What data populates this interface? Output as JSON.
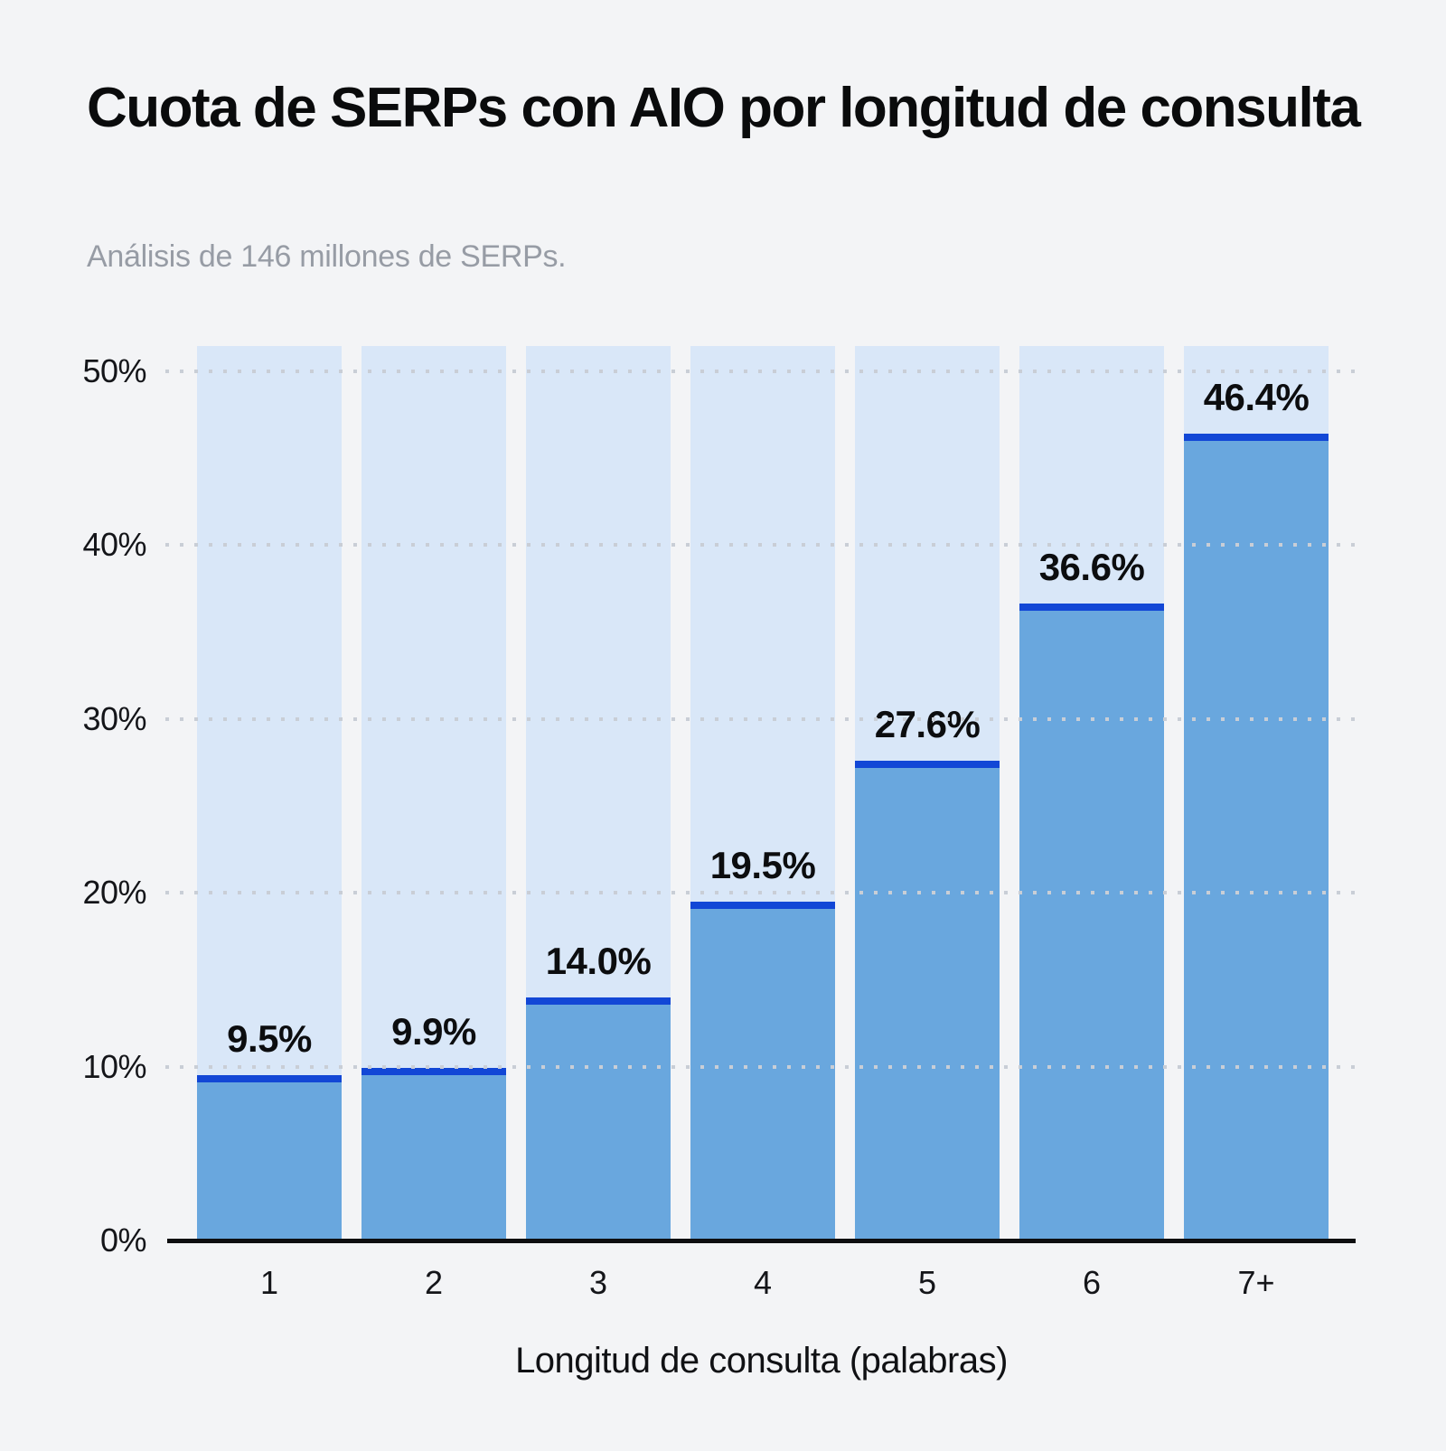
{
  "chart_data": {
    "type": "bar",
    "title": "Cuota de SERPs con AIO por longitud de consulta",
    "subtitle": "Análisis de 146 millones de SERPs.",
    "xlabel": "Longitud de consulta (palabras)",
    "ylabel": "",
    "categories": [
      "1",
      "2",
      "3",
      "4",
      "5",
      "6",
      "7+"
    ],
    "values": [
      9.5,
      9.9,
      14.0,
      19.5,
      27.6,
      36.6,
      46.4
    ],
    "value_labels": [
      "9.5%",
      "9.9%",
      "14.0%",
      "19.5%",
      "27.6%",
      "36.6%",
      "46.4%"
    ],
    "yticks": [
      {
        "value": 0,
        "label": "0%"
      },
      {
        "value": 10,
        "label": "10%"
      },
      {
        "value": 20,
        "label": "20%"
      },
      {
        "value": 30,
        "label": "30%"
      },
      {
        "value": 40,
        "label": "40%"
      },
      {
        "value": 50,
        "label": "50%"
      }
    ],
    "ylim": [
      0,
      51.4
    ],
    "grid": "horizontal-dotted",
    "legend": "none",
    "colors": {
      "background": "#f3f4f6",
      "column_track": "#d9e7f8",
      "bar_fill": "#69a7de",
      "bar_cap": "#1247d6",
      "gridline": "#c9ced6",
      "axis": "#0d0e10",
      "title": "#0a0b0c",
      "subtitle": "#979ca5",
      "tick_label": "#141519"
    }
  }
}
